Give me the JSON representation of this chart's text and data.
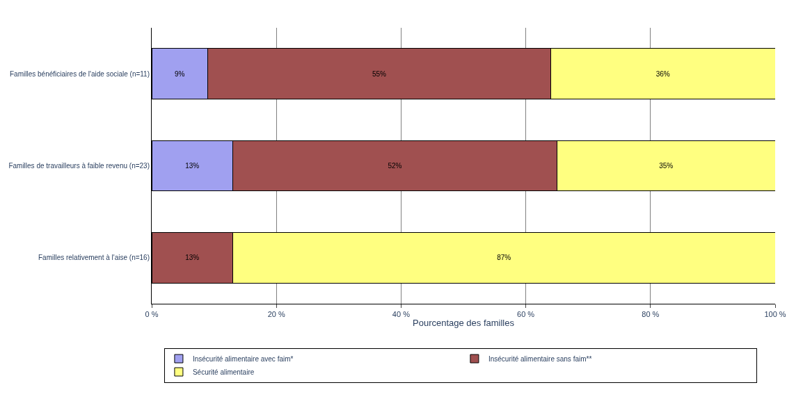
{
  "chart_data": {
    "type": "bar",
    "orientation": "horizontal",
    "stacked": true,
    "xlabel": "Pourcentage des familles",
    "categories": [
      "Familles bénéficiaires de l'aide sociale (n=11)",
      "Familles de travailleurs à faible revenu (n=23)",
      "Familles relativement à l'aise (n=16)"
    ],
    "series": [
      {
        "name": "Insécurité alimentaire avec faim*",
        "color": "#a0a0f0",
        "values": [
          9,
          13,
          0
        ],
        "value_labels": [
          "9%",
          "13%",
          null
        ]
      },
      {
        "name": "Insécurité alimentaire sans faim**",
        "color": "#a05050",
        "values": [
          55,
          52,
          13
        ],
        "value_labels": [
          "55%",
          "52%",
          "13%"
        ]
      },
      {
        "name": "Sécurité alimentaire",
        "color": "#ffff80",
        "values": [
          36,
          35,
          87
        ],
        "value_labels": [
          "36%",
          "35%",
          "87%"
        ]
      }
    ],
    "xlim": [
      0,
      100
    ],
    "xticks": [
      {
        "value": 0,
        "label": "0 %"
      },
      {
        "value": 20,
        "label": "20 %"
      },
      {
        "value": 40,
        "label": "40 %"
      },
      {
        "value": 60,
        "label": "60 %"
      },
      {
        "value": 80,
        "label": "80 %"
      },
      {
        "value": 100,
        "label": "100 %"
      }
    ],
    "grid": "x",
    "legend": "bottom"
  }
}
